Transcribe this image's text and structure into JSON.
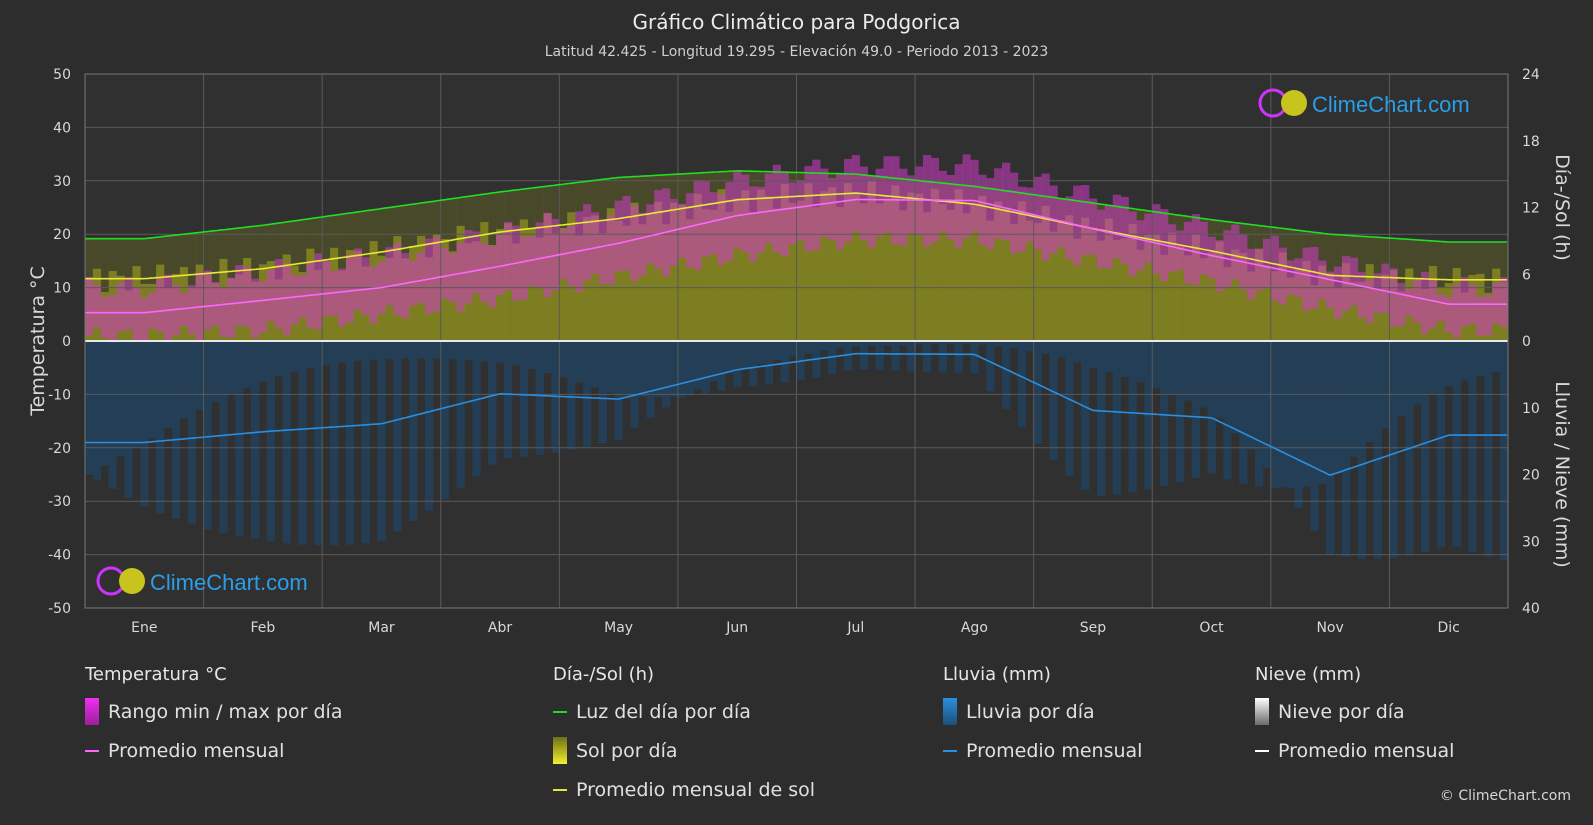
{
  "title": "Gráfico Climático para Podgorica",
  "subtitle": "Latitud 42.425 - Longitud 19.295 - Elevación 49.0 - Periodo 2013 - 2023",
  "watermark": "ClimeChart.com",
  "copyright": "© ClimeChart.com",
  "legend": {
    "temperature": {
      "title": "Temperatura °C",
      "items": [
        "Rango min / max por día",
        "Promedio mensual"
      ]
    },
    "sun": {
      "title": "Día-/Sol (h)",
      "items": [
        "Luz del día por día",
        "Sol por día",
        "Promedio mensual de sol"
      ]
    },
    "rain": {
      "title": "Lluvia (mm)",
      "items": [
        "Lluvia por día",
        "Promedio mensual"
      ]
    },
    "snow": {
      "title": "Nieve (mm)",
      "items": [
        "Nieve por día",
        "Promedio mensual"
      ]
    }
  },
  "colors": {
    "background": "#2d2d2d",
    "daylight": "#22dd22",
    "sunshine_avg": "#e8e83a",
    "sunshine_fill": "#8f8f1f",
    "temp_avg": "#ff66ff",
    "temp_range": "#d23cc8",
    "rain": "#2a8fe0",
    "snow": "#ffffff",
    "watermark": "#2a9ee8"
  },
  "chart_data": {
    "type": "line",
    "months": [
      "Ene",
      "Feb",
      "Mar",
      "Abr",
      "May",
      "Jun",
      "Jul",
      "Ago",
      "Sep",
      "Oct",
      "Nov",
      "Dic"
    ],
    "y_left": {
      "label": "Temperatura °C",
      "range": [
        -50,
        50
      ],
      "ticks": [
        50,
        40,
        30,
        20,
        10,
        0,
        -10,
        -20,
        -30,
        -40,
        -50
      ]
    },
    "y_right_top": {
      "label": "Día-/Sol (h)",
      "range": [
        0,
        24
      ],
      "ticks": [
        24,
        18,
        12,
        6,
        0
      ]
    },
    "y_right_bottom": {
      "label": "Lluvia / Nieve (mm)",
      "range": [
        0,
        40
      ],
      "ticks": [
        10,
        20,
        30,
        40
      ]
    },
    "grid": true,
    "series": [
      {
        "name": "Luz del día por día",
        "axis": "hours",
        "values": [
          9.2,
          10.4,
          11.9,
          13.4,
          14.7,
          15.3,
          15.0,
          13.9,
          12.4,
          10.9,
          9.6,
          8.9
        ]
      },
      {
        "name": "Promedio mensual de sol",
        "axis": "hours",
        "values": [
          5.6,
          6.5,
          8.0,
          9.8,
          11.0,
          12.7,
          13.3,
          12.3,
          10.1,
          8.1,
          5.9,
          5.5
        ]
      },
      {
        "name": "Promedio mensual",
        "kind": "temperature",
        "axis": "temperature",
        "values": [
          5.3,
          7.6,
          10.0,
          14.0,
          18.3,
          23.5,
          26.5,
          26.3,
          21.0,
          16.0,
          11.5,
          6.9
        ]
      },
      {
        "name": "Promedio mensual",
        "kind": "rain",
        "axis": "precip_mm",
        "values": [
          15.2,
          13.6,
          12.4,
          7.9,
          8.7,
          4.3,
          1.9,
          2.0,
          10.4,
          11.5,
          20.1,
          14.1
        ]
      },
      {
        "name": "Promedio mensual",
        "kind": "snow",
        "axis": "precip_mm",
        "values": [
          0,
          0,
          0,
          0,
          0,
          0,
          0,
          0,
          0,
          0,
          0,
          0
        ]
      }
    ],
    "temp_range": {
      "min": [
        1,
        2,
        5,
        8,
        12,
        16,
        19,
        19,
        15,
        11,
        6,
        2
      ],
      "max": [
        10,
        13,
        16,
        20,
        25,
        30,
        33,
        33,
        27,
        21,
        15,
        10
      ]
    }
  }
}
